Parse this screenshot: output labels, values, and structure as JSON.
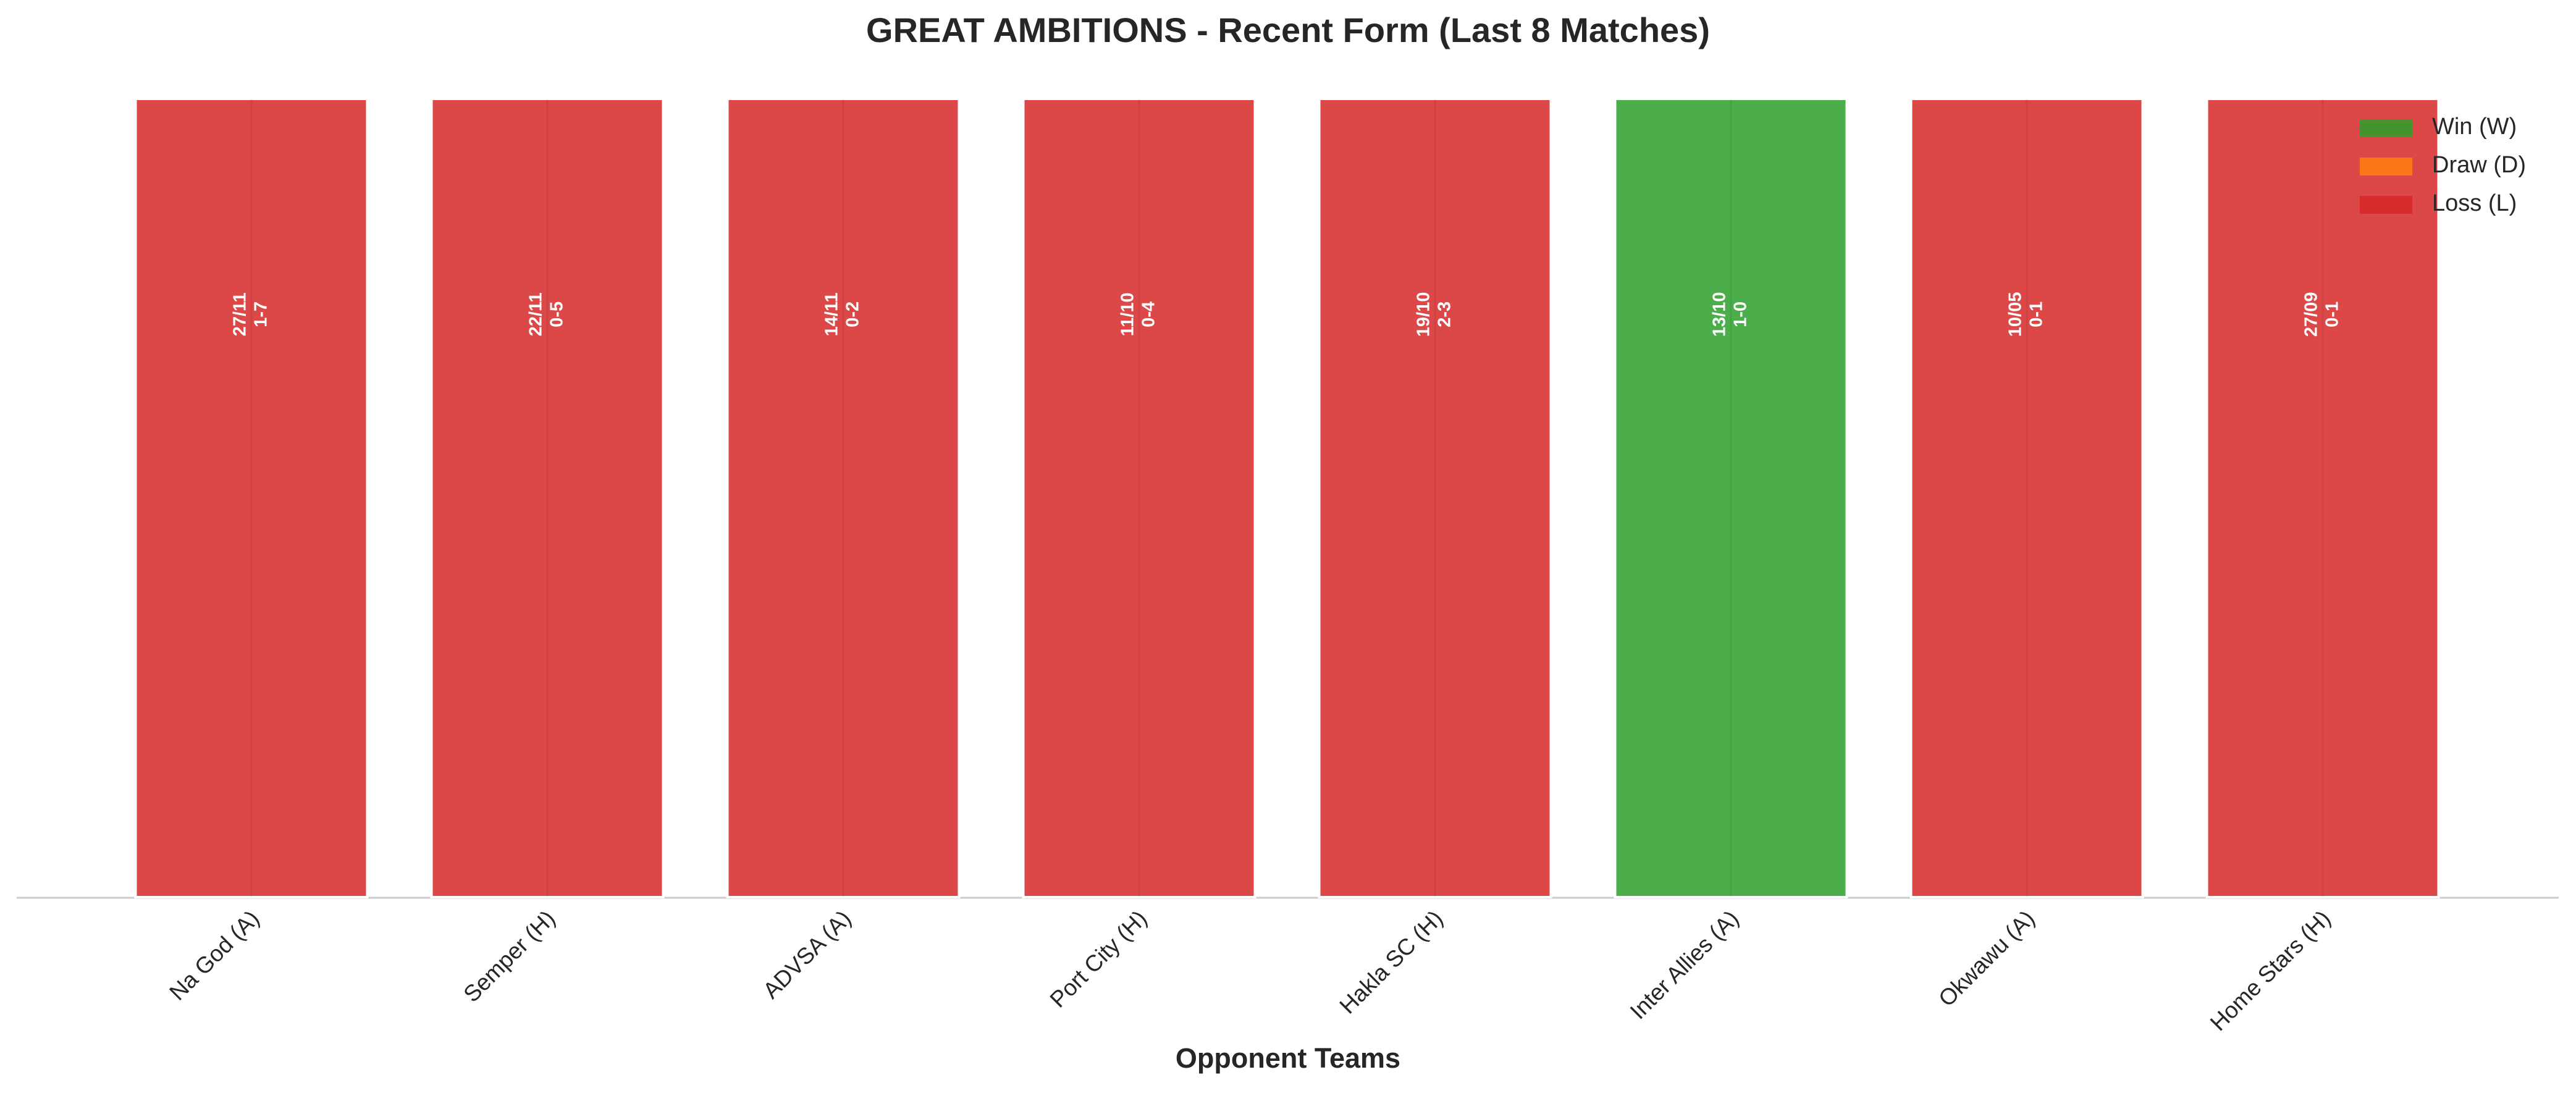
{
  "chart_data": {
    "type": "bar",
    "title": "GREAT AMBITIONS - Recent Form (Last 8 Matches)",
    "x_label": "Opponent Teams",
    "categories": [
      "Na God (A)",
      "Semper (H)",
      "ADVSA (A)",
      "Port City (H)",
      "Hakla SC (H)",
      "Inter Allies (A)",
      "Okwawu (A)",
      "Home Stars (H)"
    ],
    "values": [
      1,
      1,
      1,
      1,
      1,
      1,
      1,
      1
    ],
    "dates": [
      "27/11",
      "22/11",
      "14/11",
      "11/10",
      "19/10",
      "13/10",
      "10/05",
      "27/09"
    ],
    "scores": [
      "1-7",
      "0-5",
      "0-2",
      "0-4",
      "2-3",
      "1-0",
      "0-1",
      "0-1"
    ],
    "results": [
      "L",
      "L",
      "L",
      "L",
      "L",
      "W",
      "L",
      "L"
    ],
    "ylim": [
      0,
      1
    ],
    "legend": [
      {
        "key": "W",
        "name": "Win (W)",
        "color": "#2ca02c"
      },
      {
        "key": "D",
        "name": "Draw (D)",
        "color": "#ff7f0e"
      },
      {
        "key": "L",
        "name": "Loss (L)",
        "color": "#d62728"
      }
    ],
    "legend_loc": "upper right"
  }
}
